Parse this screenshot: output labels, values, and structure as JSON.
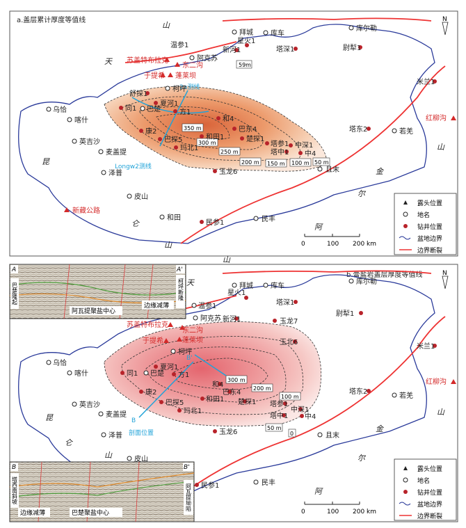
{
  "panel_a": {
    "title": "a.盖层累计厚度等值线",
    "cities": [
      "乌恰",
      "喀什",
      "英吉沙",
      "麦盖提",
      "泽普",
      "皮山",
      "和田",
      "民丰",
      "且末",
      "若羌",
      "拜城",
      "库车",
      "库尔勒",
      "温参1",
      "阿克苏",
      "柯坪",
      "巴楚"
    ],
    "wells": [
      "舒探1",
      "同1",
      "夏河1",
      "方1",
      "和4",
      "巴东4",
      "楚探1",
      "和田1",
      "康2",
      "巴探5",
      "玛北1",
      "玉龙6",
      "塔参1",
      "中深1",
      "塔中1",
      "中4",
      "星火1",
      "新河1",
      "塔深1",
      "尉犁1",
      "米兰1",
      "塔东2",
      "民参1"
    ],
    "outcrops": [
      "苏盖特布拉克",
      "东二沟",
      "于提希",
      "蓬莱坝",
      "红柳沟",
      "新藏公路"
    ],
    "big_labels": [
      "天",
      "山",
      "昆",
      "仑",
      "山",
      "金",
      "山",
      "阿",
      "尔"
    ],
    "contours": [
      "59m",
      "350 m",
      "300 m",
      "250 m",
      "200 m",
      "150 m",
      "100 m",
      "50 m"
    ],
    "lines": [
      "2a测线",
      "Longw2测线"
    ]
  },
  "panel_b": {
    "title": "b.膏盐岩盖层厚度等值线",
    "cities": [
      "乌恰",
      "喀什",
      "英吉沙",
      "麦盖提",
      "泽普",
      "皮山",
      "民丰",
      "且末",
      "若羌",
      "拜城",
      "库车",
      "库尔勒",
      "温参1",
      "阿克苏",
      "柯坪",
      "巴楚"
    ],
    "wells": [
      "同1",
      "夏河1",
      "方1",
      "和4",
      "巴东4",
      "楚探1",
      "和田1",
      "康2",
      "巴探5",
      "玛北1",
      "玉龙6",
      "塔参1",
      "中深1",
      "塔中1",
      "中4",
      "星火1",
      "新河1",
      "塔深1",
      "尉犁1",
      "米兰1",
      "塔东2",
      "民参1",
      "塔东1",
      "玉龙7",
      "玉北6"
    ],
    "outcrops": [
      "苏盖特布拉克",
      "东二沟",
      "于提希",
      "蓬莱坝",
      "红柳沟"
    ],
    "big_labels": [
      "天",
      "山",
      "昆",
      "仑",
      "山",
      "金",
      "山",
      "阿",
      "尔"
    ],
    "contours": [
      "300 m",
      "200 m",
      "100 m",
      "50 m",
      "0"
    ],
    "lines": [
      "B",
      "B'",
      "剖面位置"
    ]
  },
  "seismic_top": {
    "left_label": "A",
    "right_label": "A'",
    "side_label": "巴楚隆起",
    "right_side_label": "柯坪断隆",
    "mid_label": "阿瓦提聚盐中心",
    "right_label2": "边缘减薄"
  },
  "seismic_bottom": {
    "left_label": "B",
    "right_label": "B'",
    "side_label": "塔西南斜坡",
    "right_side_label": "阿瓦提坳陷",
    "left_label2": "边缘减薄",
    "mid_label": "巴楚聚盐中心"
  },
  "legend": [
    "露头位置",
    "地名",
    "钻井位置",
    "盆地边界",
    "边界断裂"
  ],
  "scale": {
    "ticks": [
      "0",
      "100",
      "200 km"
    ]
  },
  "north": "N"
}
